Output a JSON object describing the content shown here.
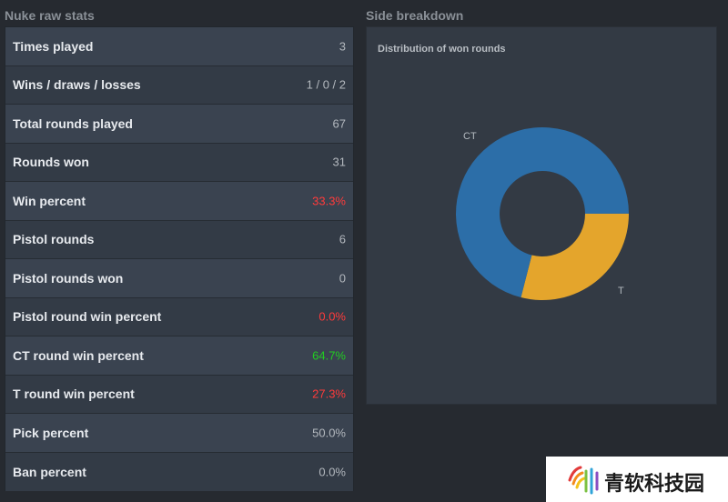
{
  "left_section": {
    "title": "Nuke raw stats",
    "rows": [
      {
        "label": "Times played",
        "value": "3",
        "value_color": "#b3b8be"
      },
      {
        "label": "Wins / draws / losses",
        "value": "1 / 0 / 2",
        "value_color": "#b3b8be"
      },
      {
        "label": "Total rounds played",
        "value": "67",
        "value_color": "#b3b8be"
      },
      {
        "label": "Rounds won",
        "value": "31",
        "value_color": "#b3b8be"
      },
      {
        "label": "Win percent",
        "value": "33.3%",
        "value_color": "#ff3b3b"
      },
      {
        "label": "Pistol rounds",
        "value": "6",
        "value_color": "#b3b8be"
      },
      {
        "label": "Pistol rounds won",
        "value": "0",
        "value_color": "#b3b8be"
      },
      {
        "label": "Pistol round win percent",
        "value": "0.0%",
        "value_color": "#ff3b3b"
      },
      {
        "label": "CT round win percent",
        "value": "64.7%",
        "value_color": "#22cc22"
      },
      {
        "label": "T round win percent",
        "value": "27.3%",
        "value_color": "#ff3b3b"
      },
      {
        "label": "Pick percent",
        "value": "50.0%",
        "value_color": "#b3b8be"
      },
      {
        "label": "Ban percent",
        "value": "0.0%",
        "value_color": "#b3b8be"
      }
    ]
  },
  "right_section": {
    "title": "Side breakdown",
    "panel_title": "Distribution of won rounds"
  },
  "chart_data": {
    "type": "pie",
    "title": "Distribution of won rounds",
    "donut": true,
    "series": [
      {
        "label": "CT",
        "value": 71,
        "color": "#2c6ea8"
      },
      {
        "label": "T",
        "value": 29,
        "color": "#e4a52c"
      }
    ]
  },
  "watermark": {
    "text": "青软科技园",
    "logo_icon": "sound-wave-logo"
  }
}
